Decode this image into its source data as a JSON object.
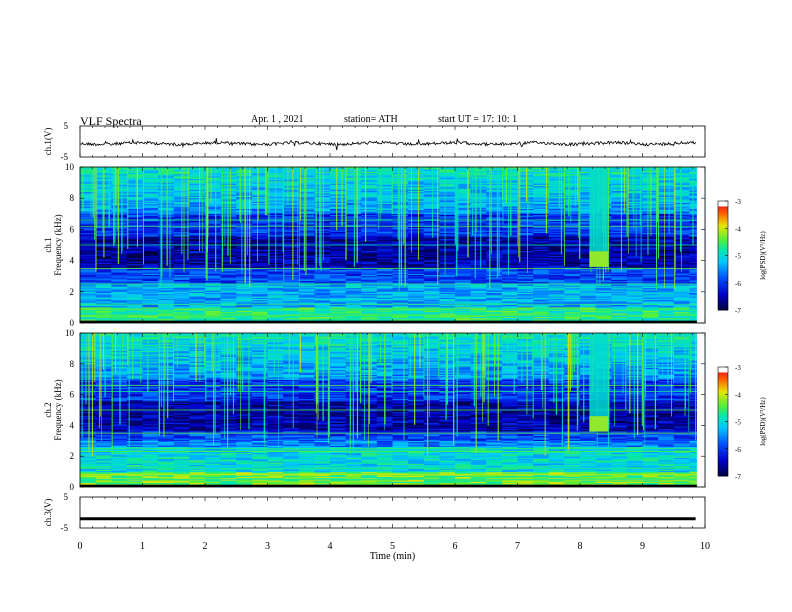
{
  "header": {
    "title": "VLF  Spectra",
    "date": "Apr. 1  , 2021",
    "station": "station= ATH",
    "start": "start  UT  =   17: 10: 1"
  },
  "chart_data": [
    {
      "type": "line",
      "ylabel": "ch.1(V)",
      "ylim": [
        -5,
        5
      ],
      "yticks": [
        "5",
        "-5"
      ],
      "xlim": [
        0,
        10
      ],
      "description_values": "waveform near -0.5 V with small fluctuations"
    },
    {
      "type": "heatmap",
      "ylabel": "ch.1\nFrequency  (kHz)",
      "ylabel_lines": [
        "ch.1",
        "Frequency  (kHz)"
      ],
      "ylim": [
        0,
        10
      ],
      "yticks": [
        "0",
        "2",
        "4",
        "6",
        "8",
        "10"
      ],
      "xlim": [
        0,
        10
      ],
      "colorbar": {
        "label": "log(PSD)(V²/Hz)",
        "ticks": [
          "-3",
          "-4",
          "-5",
          "-6",
          "-7"
        ],
        "range": [
          -7,
          -3
        ]
      },
      "burst": {
        "t_start": 8.15,
        "t_end": 8.45,
        "f_low": 3.6,
        "f_high": 10
      }
    },
    {
      "type": "heatmap",
      "ylabel": "ch.2\nFrequency  (kHz)",
      "ylabel_lines": [
        "ch.2",
        "Frequency  (kHz)"
      ],
      "ylim": [
        0,
        10
      ],
      "yticks": [
        "0",
        "2",
        "4",
        "6",
        "8",
        "10"
      ],
      "xlim": [
        0,
        10
      ],
      "colorbar": {
        "label": "log(PSD)(V²/Hz)",
        "ticks": [
          "-3",
          "-4",
          "-5",
          "-6",
          "-7"
        ],
        "range": [
          -7,
          -3
        ]
      },
      "burst": {
        "t_start": 8.15,
        "t_end": 8.45,
        "f_low": 3.6,
        "f_high": 10
      }
    },
    {
      "type": "line",
      "ylabel": "ch.3(V)",
      "ylim": [
        -5,
        5
      ],
      "yticks": [
        "5",
        "-5"
      ],
      "xlim": [
        0,
        10
      ],
      "values_level": -2
    }
  ],
  "xaxis": {
    "label": "Time  (min)",
    "ticks": [
      "0",
      "1",
      "2",
      "3",
      "4",
      "5",
      "6",
      "7",
      "8",
      "9",
      "10"
    ]
  },
  "colors": {
    "ink": "#000000",
    "background": "#ffffff"
  }
}
